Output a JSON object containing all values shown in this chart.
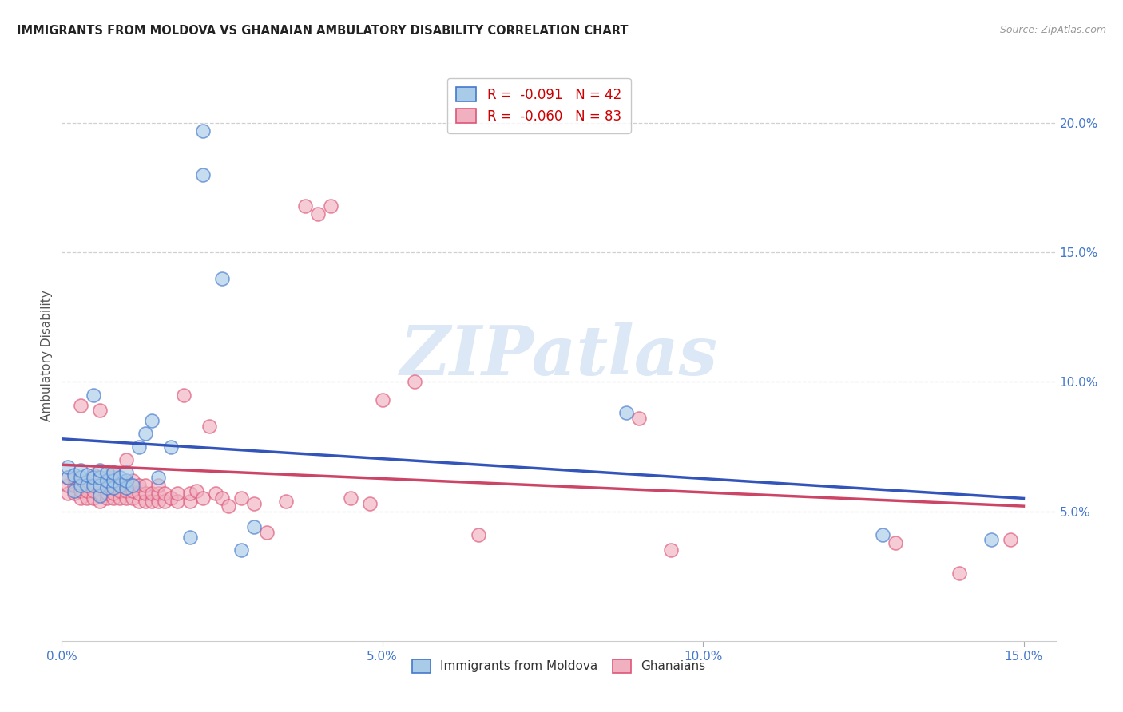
{
  "title": "IMMIGRANTS FROM MOLDOVA VS GHANAIAN AMBULATORY DISABILITY CORRELATION CHART",
  "source": "Source: ZipAtlas.com",
  "ylabel": "Ambulatory Disability",
  "xlim": [
    0.0,
    0.155
  ],
  "ylim": [
    0.0,
    0.22
  ],
  "xticks": [
    0.0,
    0.05,
    0.1,
    0.15
  ],
  "xtick_labels": [
    "0.0%",
    "5.0%",
    "10.0%",
    "15.0%"
  ],
  "yticks_right": [
    0.05,
    0.1,
    0.15,
    0.2
  ],
  "ytick_labels_right": [
    "5.0%",
    "10.0%",
    "15.0%",
    "20.0%"
  ],
  "legend_blue_r": "-0.091",
  "legend_blue_n": "42",
  "legend_pink_r": "-0.060",
  "legend_pink_n": "83",
  "blue_fill": "#a8cce8",
  "pink_fill": "#f0b0c0",
  "blue_edge": "#4477cc",
  "pink_edge": "#dd5577",
  "line_blue": "#3355bb",
  "line_pink": "#cc4466",
  "watermark_text": "ZIPatlas",
  "watermark_color": "#dce8f5",
  "blue_line_start_y": 0.078,
  "blue_line_end_y": 0.055,
  "pink_line_start_y": 0.068,
  "pink_line_end_y": 0.052,
  "blue_x": [
    0.001,
    0.001,
    0.002,
    0.002,
    0.003,
    0.003,
    0.003,
    0.004,
    0.004,
    0.005,
    0.005,
    0.005,
    0.006,
    0.006,
    0.006,
    0.006,
    0.007,
    0.007,
    0.007,
    0.008,
    0.008,
    0.008,
    0.009,
    0.009,
    0.01,
    0.01,
    0.01,
    0.011,
    0.012,
    0.013,
    0.014,
    0.015,
    0.017,
    0.02,
    0.022,
    0.022,
    0.025,
    0.028,
    0.03,
    0.088,
    0.128,
    0.145
  ],
  "blue_y": [
    0.063,
    0.067,
    0.058,
    0.064,
    0.06,
    0.063,
    0.066,
    0.06,
    0.064,
    0.06,
    0.063,
    0.095,
    0.056,
    0.06,
    0.063,
    0.066,
    0.059,
    0.062,
    0.065,
    0.059,
    0.062,
    0.065,
    0.06,
    0.063,
    0.059,
    0.062,
    0.065,
    0.06,
    0.075,
    0.08,
    0.085,
    0.063,
    0.075,
    0.04,
    0.18,
    0.197,
    0.14,
    0.035,
    0.044,
    0.088,
    0.041,
    0.039
  ],
  "pink_x": [
    0.001,
    0.001,
    0.001,
    0.002,
    0.002,
    0.002,
    0.003,
    0.003,
    0.003,
    0.003,
    0.004,
    0.004,
    0.004,
    0.005,
    0.005,
    0.005,
    0.005,
    0.006,
    0.006,
    0.006,
    0.006,
    0.006,
    0.007,
    0.007,
    0.007,
    0.007,
    0.008,
    0.008,
    0.008,
    0.008,
    0.008,
    0.009,
    0.009,
    0.009,
    0.01,
    0.01,
    0.01,
    0.01,
    0.011,
    0.011,
    0.011,
    0.012,
    0.012,
    0.012,
    0.013,
    0.013,
    0.013,
    0.014,
    0.014,
    0.015,
    0.015,
    0.015,
    0.016,
    0.016,
    0.017,
    0.018,
    0.018,
    0.019,
    0.02,
    0.02,
    0.021,
    0.022,
    0.023,
    0.024,
    0.025,
    0.026,
    0.028,
    0.03,
    0.032,
    0.035,
    0.038,
    0.04,
    0.042,
    0.045,
    0.048,
    0.05,
    0.055,
    0.065,
    0.09,
    0.095,
    0.13,
    0.14,
    0.148
  ],
  "pink_y": [
    0.057,
    0.06,
    0.063,
    0.057,
    0.06,
    0.063,
    0.055,
    0.058,
    0.061,
    0.091,
    0.055,
    0.058,
    0.062,
    0.055,
    0.058,
    0.061,
    0.064,
    0.054,
    0.057,
    0.06,
    0.063,
    0.089,
    0.055,
    0.057,
    0.06,
    0.063,
    0.055,
    0.057,
    0.06,
    0.063,
    0.065,
    0.055,
    0.058,
    0.061,
    0.055,
    0.058,
    0.061,
    0.07,
    0.055,
    0.058,
    0.062,
    0.054,
    0.057,
    0.06,
    0.054,
    0.057,
    0.06,
    0.054,
    0.057,
    0.054,
    0.057,
    0.06,
    0.054,
    0.057,
    0.055,
    0.054,
    0.057,
    0.095,
    0.054,
    0.057,
    0.058,
    0.055,
    0.083,
    0.057,
    0.055,
    0.052,
    0.055,
    0.053,
    0.042,
    0.054,
    0.168,
    0.165,
    0.168,
    0.055,
    0.053,
    0.093,
    0.1,
    0.041,
    0.086,
    0.035,
    0.038,
    0.026,
    0.039
  ]
}
